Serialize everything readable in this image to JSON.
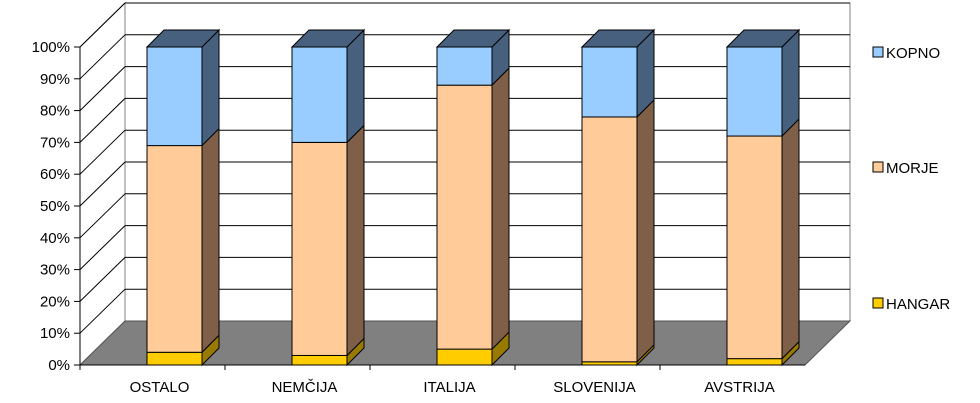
{
  "chart_data": {
    "type": "bar",
    "stacked": "100%",
    "categories": [
      "OSTALO",
      "NEMČIJA",
      "ITALIJA",
      "SLOVENIJA",
      "AVSTRIJA"
    ],
    "series": [
      {
        "name": "HANGAR",
        "values": [
          4,
          3,
          5,
          1,
          2
        ],
        "color": "#ffcc00"
      },
      {
        "name": "MORJE",
        "values": [
          65,
          67,
          83,
          77,
          70
        ],
        "color": "#ffcc99"
      },
      {
        "name": "KOPNO",
        "values": [
          31,
          30,
          12,
          22,
          28
        ],
        "color": "#99ccff"
      }
    ],
    "y_ticks": [
      "0%",
      "10%",
      "20%",
      "30%",
      "40%",
      "50%",
      "60%",
      "70%",
      "80%",
      "90%",
      "100%"
    ],
    "ylim": [
      0,
      100
    ],
    "grid": true,
    "legend": "right",
    "legend_order": [
      "KOPNO",
      "MORJE",
      "HANGAR"
    ],
    "side_colors": {
      "HANGAR": "#997a00",
      "MORJE": "#7f5f47",
      "KOPNO": "#46607e"
    },
    "floor_color": "#808080"
  }
}
